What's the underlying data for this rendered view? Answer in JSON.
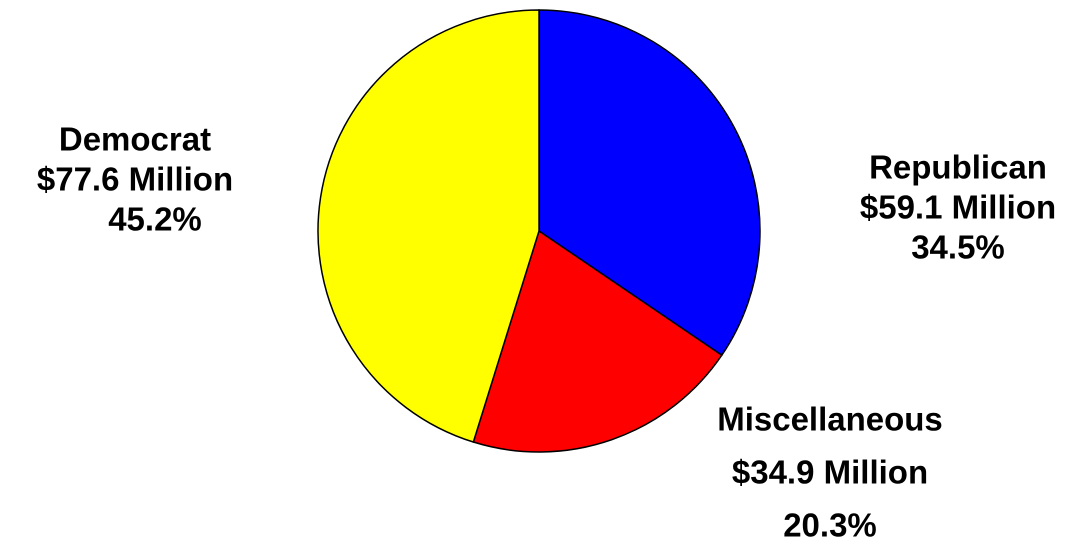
{
  "chart_data": {
    "type": "pie",
    "categories": [
      "Republican",
      "Miscellaneous",
      "Democrat"
    ],
    "values": [
      34.5,
      20.3,
      45.2
    ],
    "value_labels": [
      "34.5%",
      "20.3%",
      "45.2%"
    ],
    "amount_labels": [
      "$59.1 Million",
      "$34.9 Million",
      "$77.6 Million"
    ],
    "colors": [
      "#0000ff",
      "#ff0000",
      "#ffff00"
    ]
  }
}
